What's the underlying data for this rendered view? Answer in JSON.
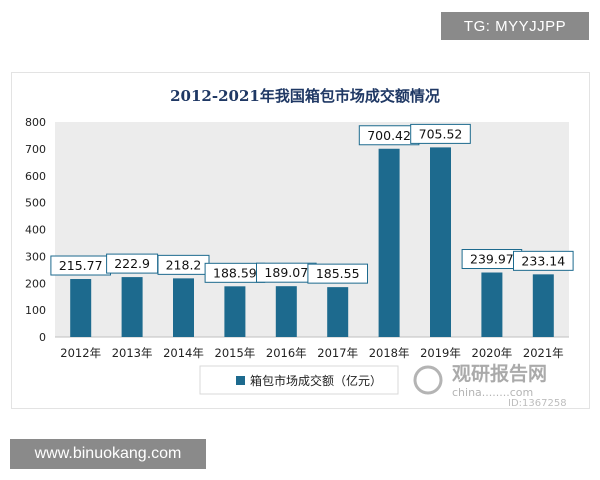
{
  "watermarks": {
    "top_tag": "TG: MYYJJPP",
    "bottom_site": "www.binuokang.com",
    "logo_text": "观研报告网",
    "logo_sub": "china........com",
    "logo_id": "ID:1367258"
  },
  "colors": {
    "bar": "#1d6a8e",
    "title": "#1f3864",
    "plot_bg": "#ececec",
    "label_border": "#1d6a8e"
  },
  "chart_data": {
    "type": "bar",
    "title": "2012-2021年我国箱包市场成交额情况",
    "xlabel": "",
    "ylabel": "",
    "categories": [
      "2012年",
      "2013年",
      "2014年",
      "2015年",
      "2016年",
      "2017年",
      "2018年",
      "2019年",
      "2020年",
      "2021年"
    ],
    "series": [
      {
        "name": "箱包市场成交额（亿元）",
        "values": [
          215.77,
          222.9,
          218.2,
          188.59,
          189.07,
          185.55,
          700.42,
          705.52,
          239.97,
          233.14
        ],
        "labels": [
          "215.77",
          "222.9",
          "218.2",
          "188.59",
          "189.07",
          "185.55",
          "700.42",
          "705.52",
          "239.97",
          "233.14"
        ]
      }
    ],
    "ylim": [
      0,
      800
    ],
    "yticks": [
      "0",
      "100",
      "200",
      "300",
      "400",
      "500",
      "600",
      "700",
      "800"
    ],
    "grid": false,
    "legend_position": "bottom-left"
  }
}
